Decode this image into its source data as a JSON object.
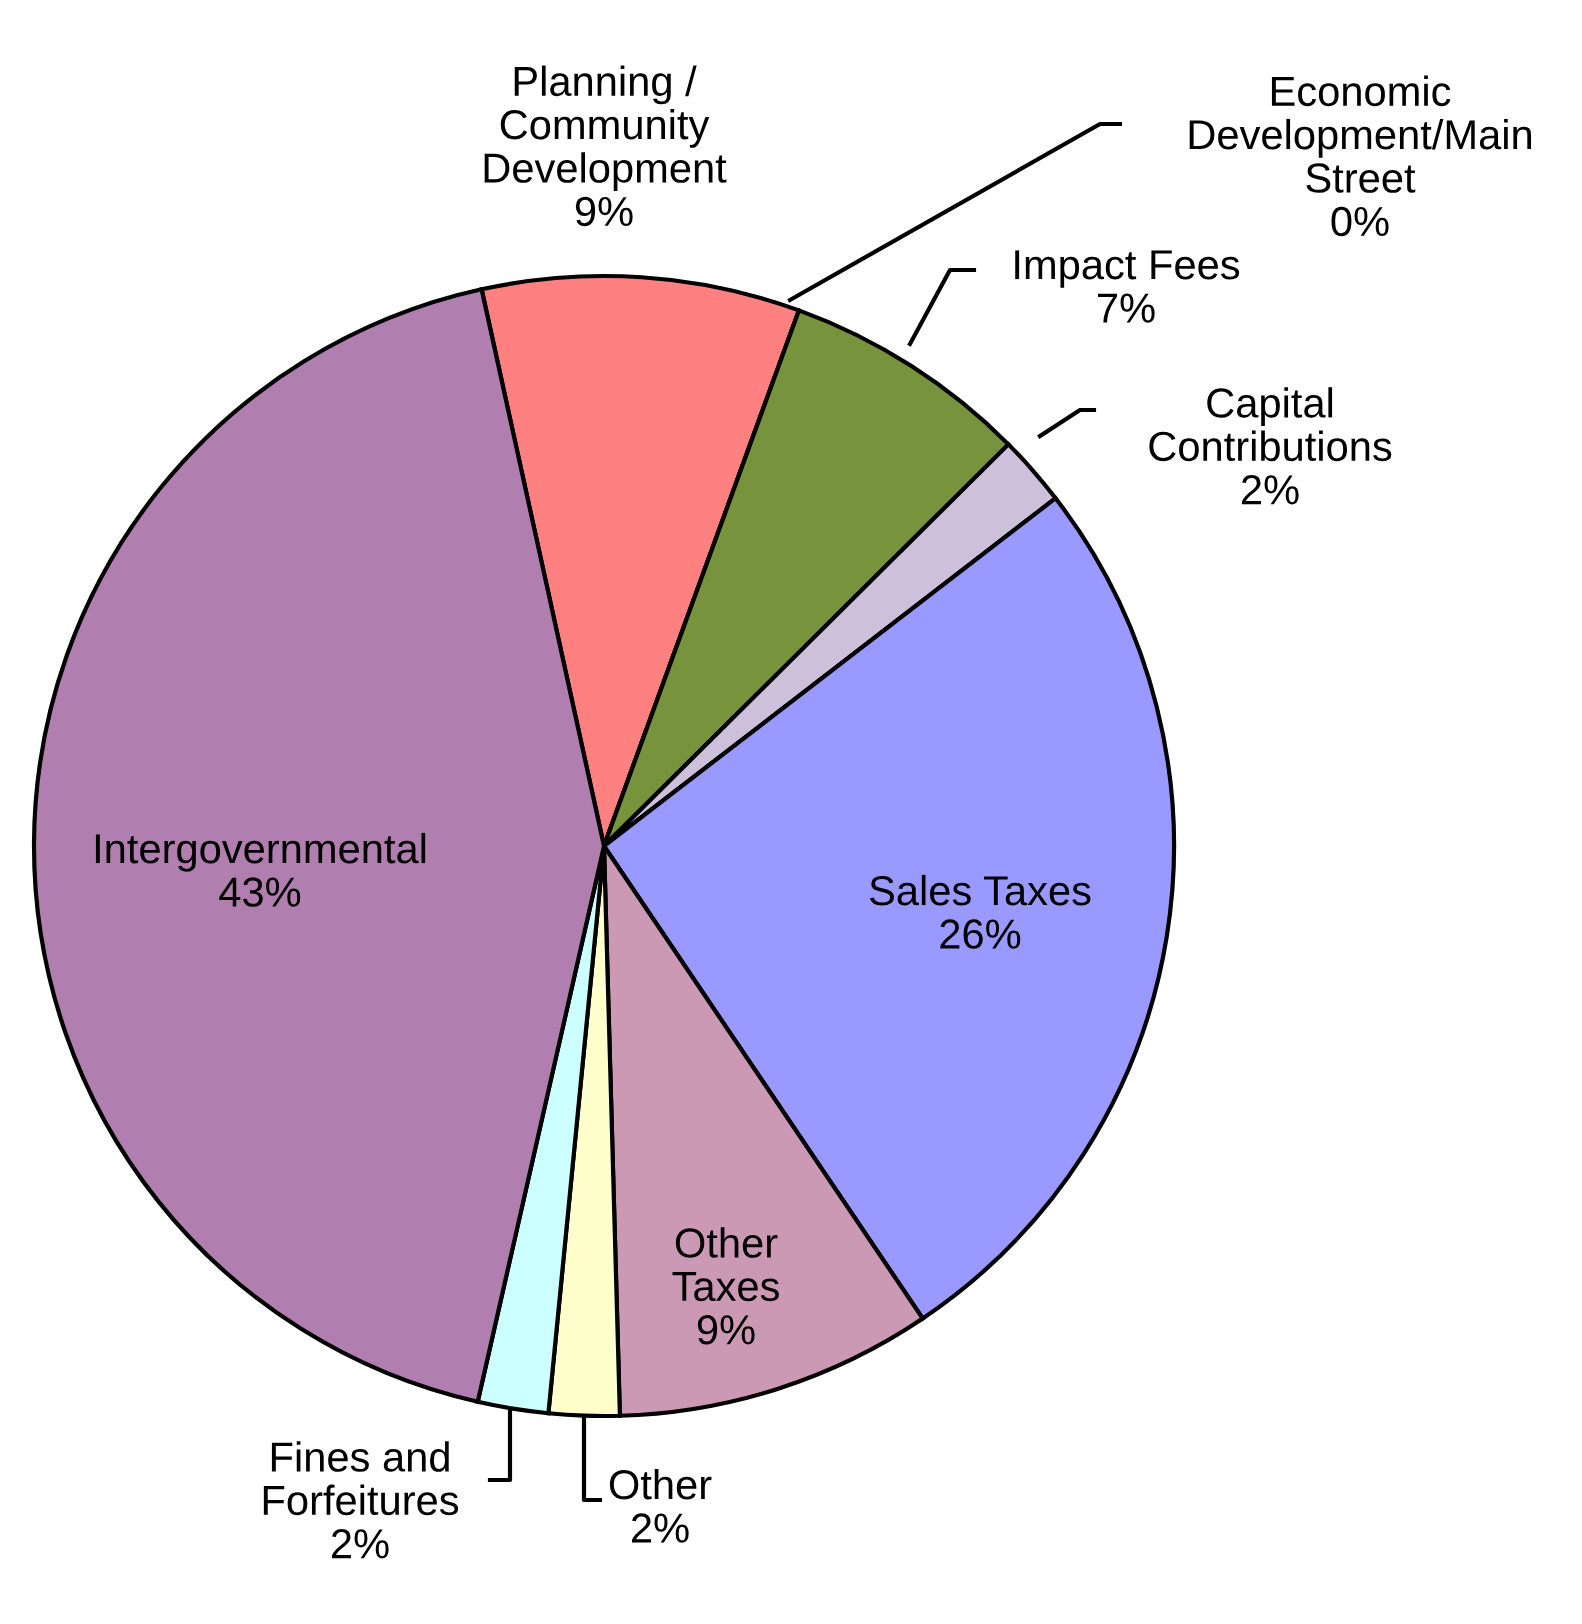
{
  "chart_data": {
    "type": "pie",
    "categories": [
      "Planning /\nCommunity\nDevelopment",
      "Economic\nDevelopment/Main\nStreet",
      "Impact Fees",
      "Capital\nContributions",
      "Sales Taxes",
      "Other\nTaxes",
      "Other",
      "Fines and\nForfeitures",
      "Intergovernmental"
    ],
    "values": [
      9,
      0,
      7,
      2,
      26,
      9,
      2,
      2,
      43
    ],
    "value_labels": [
      "9%",
      "0%",
      "7%",
      "2%",
      "26%",
      "9%",
      "2%",
      "2%",
      "43%"
    ],
    "colors": [
      "#ff8080",
      "#ff9900",
      "#77933c",
      "#ccc0da",
      "#9999ff",
      "#cc99b4",
      "#ffffcc",
      "#ccffff",
      "#b07fb0"
    ],
    "legend": false
  }
}
